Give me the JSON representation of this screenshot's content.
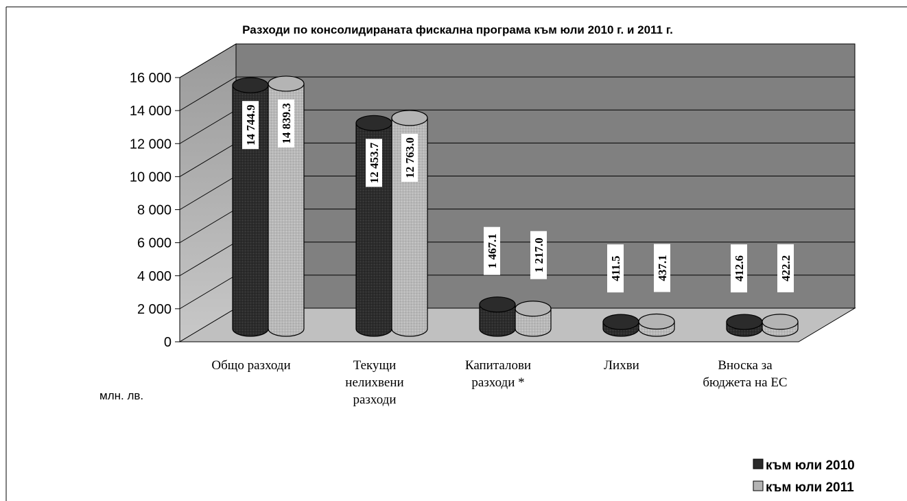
{
  "chart_data": {
    "type": "bar",
    "title": "Разходи по консолидираната фискална програма към юли 2010 г. и  2011 г.",
    "ylabel": "млн. лв.",
    "ylim": [
      0,
      16000
    ],
    "yticks": [
      "0",
      "2 000",
      "4 000",
      "6 000",
      "8 000",
      "10 000",
      "12 000",
      "14 000",
      "16 000"
    ],
    "grid": true,
    "legend_position": "bottom-right",
    "categories": [
      [
        "Общо разходи"
      ],
      [
        "Текущи",
        "нелихвени",
        "разходи"
      ],
      [
        "Капиталови",
        "разходи *"
      ],
      [
        "Лихви"
      ],
      [
        "Вноска за",
        "бюджета на  ЕС"
      ]
    ],
    "series": [
      {
        "name": "към юли 2010",
        "color": "#2b2b2b",
        "values": [
          14744.9,
          12453.7,
          1467.1,
          411.5,
          412.6
        ],
        "labels": [
          "14 744.9",
          "12 453.7",
          "1 467.1",
          "411.5",
          "412.6"
        ]
      },
      {
        "name": "към юли 2011",
        "color": "#b4b4b4",
        "values": [
          14839.3,
          12763.0,
          1217.0,
          437.1,
          422.2
        ],
        "labels": [
          "14 839.3",
          "12 763.0",
          "1 217.0",
          "437.1",
          "422.2"
        ]
      }
    ]
  }
}
